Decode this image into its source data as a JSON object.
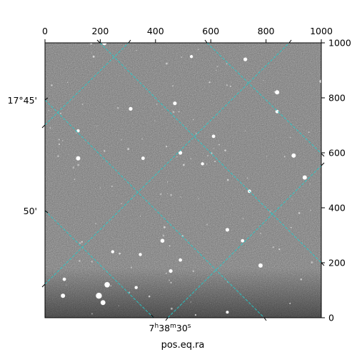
{
  "figure": {
    "xlabel": "pos.eq.ra",
    "ra_tick_label": "7h38m30s",
    "ra_tick_parts": {
      "hours": "7",
      "h_unit": "h",
      "minutes": "38",
      "m_unit": "m",
      "seconds": "30",
      "s_unit": "s"
    },
    "dec_tick_labels": [
      "17°45'",
      "50'"
    ]
  },
  "chart_data": {
    "type": "scatter",
    "title": "",
    "xlabel": "pos.eq.ra",
    "ylabel": "",
    "top_axis": {
      "range": [
        0,
        1000
      ],
      "ticks": [
        0,
        200,
        400,
        600,
        800,
        1000
      ]
    },
    "right_axis": {
      "range": [
        0,
        1000
      ],
      "ticks": [
        0,
        200,
        400,
        600,
        800,
        1000
      ]
    },
    "grid": true,
    "grid_color": "#22cccc",
    "image_colormap": "gray",
    "sources_pixel_coords": [
      {
        "x": 215,
        "y": 1000
      },
      {
        "x": 530,
        "y": 950
      },
      {
        "x": 725,
        "y": 940
      },
      {
        "x": 1000,
        "y": 860
      },
      {
        "x": 840,
        "y": 820
      },
      {
        "x": 470,
        "y": 780
      },
      {
        "x": 310,
        "y": 760
      },
      {
        "x": 840,
        "y": 750
      },
      {
        "x": 120,
        "y": 680
      },
      {
        "x": 610,
        "y": 660
      },
      {
        "x": 490,
        "y": 600
      },
      {
        "x": 120,
        "y": 580
      },
      {
        "x": 355,
        "y": 580
      },
      {
        "x": 900,
        "y": 590
      },
      {
        "x": 570,
        "y": 560
      },
      {
        "x": 940,
        "y": 510
      },
      {
        "x": 740,
        "y": 460
      },
      {
        "x": 660,
        "y": 320
      },
      {
        "x": 715,
        "y": 280
      },
      {
        "x": 425,
        "y": 280
      },
      {
        "x": 345,
        "y": 230
      },
      {
        "x": 245,
        "y": 240
      },
      {
        "x": 490,
        "y": 210
      },
      {
        "x": 780,
        "y": 190
      },
      {
        "x": 455,
        "y": 170
      },
      {
        "x": 225,
        "y": 120
      },
      {
        "x": 195,
        "y": 80
      },
      {
        "x": 65,
        "y": 80
      },
      {
        "x": 70,
        "y": 140
      },
      {
        "x": 330,
        "y": 110
      },
      {
        "x": 660,
        "y": 20
      },
      {
        "x": 210,
        "y": 55
      }
    ]
  }
}
